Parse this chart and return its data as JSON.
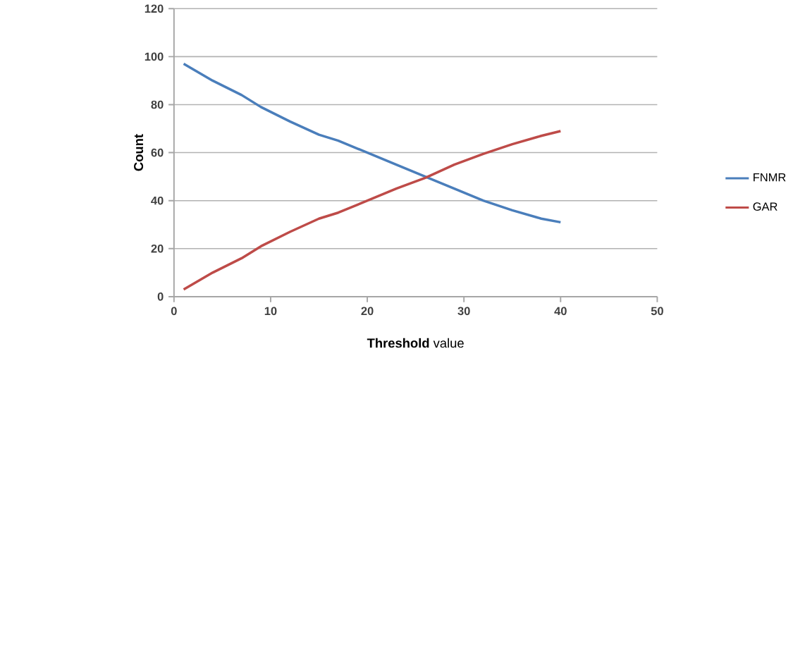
{
  "chart_data": {
    "type": "line",
    "xlabel": "**Threshold** value",
    "ylabel": "Count",
    "series": [
      {
        "name": "FNMR",
        "color": "#4a7ebb",
        "x": [
          1,
          4,
          7,
          9,
          12,
          15,
          17,
          20,
          23,
          26,
          29,
          32,
          35,
          38,
          40
        ],
        "values": [
          97,
          90,
          84,
          79,
          73,
          67.5,
          65,
          60,
          55,
          50,
          45,
          40,
          36,
          32.5,
          31
        ]
      },
      {
        "name": "GAR",
        "color": "#be4b48",
        "x": [
          1,
          4,
          7,
          9,
          12,
          15,
          17,
          20,
          23,
          26,
          29,
          32,
          35,
          38,
          40
        ],
        "values": [
          3,
          10,
          16,
          21,
          27,
          32.5,
          35,
          40,
          45,
          49.5,
          55,
          59.5,
          63.5,
          67,
          69
        ]
      }
    ],
    "xlim": [
      0,
      50
    ],
    "xticks": [
      0,
      10,
      20,
      30,
      40,
      50
    ],
    "ylim": [
      0,
      120
    ],
    "yticks": [
      0,
      20,
      40,
      60,
      80,
      100,
      120
    ],
    "grid": "y",
    "legend": "right",
    "marker": "none",
    "line_style": "solid"
  }
}
